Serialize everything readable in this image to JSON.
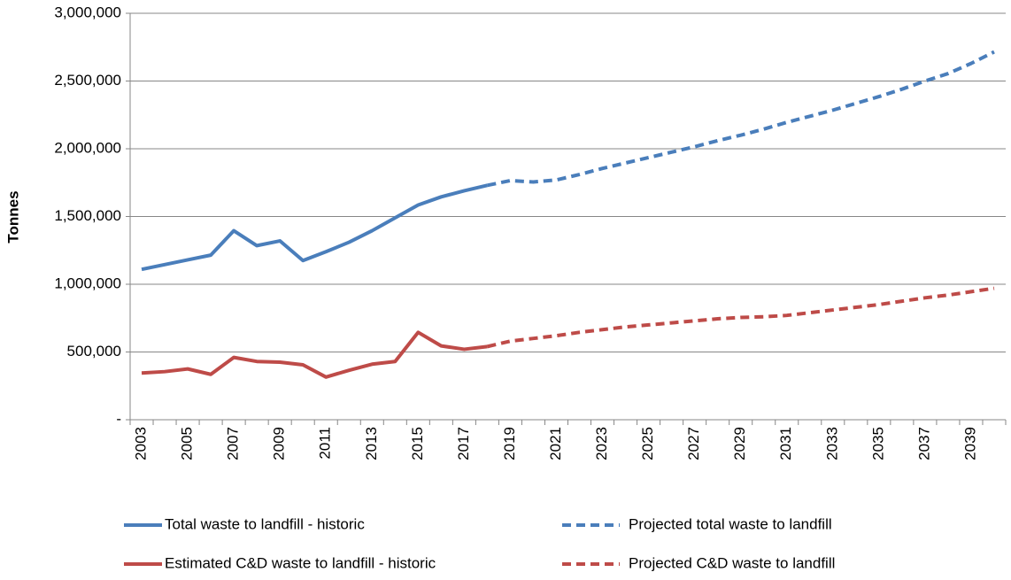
{
  "chart_data": {
    "type": "line",
    "y_label": "Tonnes",
    "categories": [
      "2003",
      null,
      "2005",
      null,
      "2007",
      null,
      "2009",
      null,
      "2011",
      null,
      "2013",
      null,
      "2015",
      null,
      "2017",
      null,
      "2019",
      null,
      "2021",
      null,
      "2023",
      null,
      "2025",
      null,
      "2027",
      null,
      "2029",
      null,
      "2031",
      null,
      "2033",
      null,
      "2035",
      null,
      "2037",
      null,
      "2039",
      null
    ],
    "series": [
      {
        "name": "Total waste to landfill - historic",
        "color": "#4a7ebb",
        "dashed": false,
        "values": [
          1110000,
          1145000,
          1180000,
          1215000,
          1395000,
          1285000,
          1320000,
          1175000,
          1240000,
          1310000,
          1395000,
          1490000,
          1585000,
          1645000,
          1690000,
          1730000,
          null,
          null,
          null,
          null,
          null,
          null,
          null,
          null,
          null,
          null,
          null,
          null,
          null,
          null,
          null,
          null,
          null,
          null,
          null,
          null,
          null,
          null
        ]
      },
      {
        "name": "Projected total waste to landfill",
        "color": "#4a7ebb",
        "dashed": true,
        "values": [
          null,
          null,
          null,
          null,
          null,
          null,
          null,
          null,
          null,
          null,
          null,
          null,
          null,
          null,
          null,
          1730000,
          1765000,
          1755000,
          1770000,
          1810000,
          1855000,
          1895000,
          1935000,
          1975000,
          2015000,
          2060000,
          2100000,
          2145000,
          2195000,
          2240000,
          2285000,
          2335000,
          2385000,
          2440000,
          2500000,
          2555000,
          2630000,
          2715000
        ]
      },
      {
        "name": "Estimated C&D waste to landfill - historic",
        "color": "#be4b48",
        "dashed": false,
        "values": [
          345000,
          355000,
          375000,
          335000,
          460000,
          430000,
          425000,
          405000,
          315000,
          365000,
          410000,
          430000,
          645000,
          545000,
          520000,
          540000,
          null,
          null,
          null,
          null,
          null,
          null,
          null,
          null,
          null,
          null,
          null,
          null,
          null,
          null,
          null,
          null,
          null,
          null,
          null,
          null,
          null,
          null
        ]
      },
      {
        "name": "Projected C&D waste to landfill",
        "color": "#be4b48",
        "dashed": true,
        "values": [
          null,
          null,
          null,
          null,
          null,
          null,
          null,
          null,
          null,
          null,
          null,
          null,
          null,
          null,
          null,
          540000,
          580000,
          600000,
          620000,
          645000,
          665000,
          685000,
          700000,
          715000,
          730000,
          745000,
          755000,
          760000,
          770000,
          790000,
          810000,
          830000,
          850000,
          875000,
          900000,
          920000,
          945000,
          970000
        ]
      }
    ],
    "ylim": [
      0,
      3000000
    ],
    "yticks": [
      {
        "value": 0,
        "label": "-"
      },
      {
        "value": 500000,
        "label": "500,000"
      },
      {
        "value": 1000000,
        "label": "1,000,000"
      },
      {
        "value": 1500000,
        "label": "1,500,000"
      },
      {
        "value": 2000000,
        "label": "2,000,000"
      },
      {
        "value": 2500000,
        "label": "2,500,000"
      },
      {
        "value": 3000000,
        "label": "3,000,000"
      }
    ],
    "grid": true,
    "legend": "bottom"
  }
}
